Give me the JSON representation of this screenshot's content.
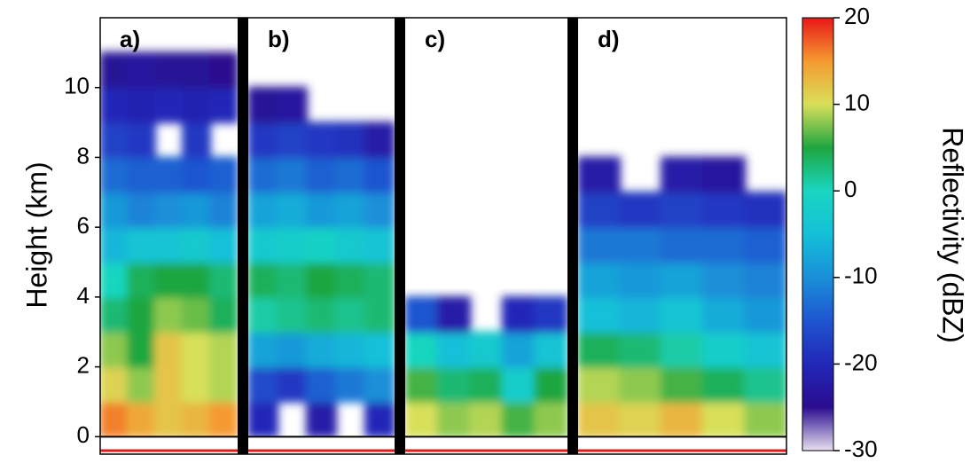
{
  "chart_data": {
    "type": "heatmap",
    "ylabel": "Height (km)",
    "colorbar_label": "Reflectivity (dBZ)",
    "ylim": [
      -0.5,
      12
    ],
    "yticks": [
      0,
      2,
      4,
      6,
      8,
      10
    ],
    "height_bins": [
      0,
      1,
      2,
      3,
      4,
      5,
      6,
      7,
      8,
      9,
      10,
      11,
      12
    ],
    "clim": [
      -30,
      20
    ],
    "cticks": [
      -30,
      -20,
      -10,
      0,
      10,
      20
    ],
    "colormap": [
      "#e8e0f0",
      "#2a0d8e",
      "#2227b8",
      "#1f55d0",
      "#1a8fd8",
      "#14c0d8",
      "#19d6c0",
      "#1fa640",
      "#d8e05a",
      "#f59a30",
      "#e81818"
    ],
    "panels": [
      {
        "label": "a)",
        "z": [
          [
            16,
            14,
            12,
            13,
            15
          ],
          [
            11,
            8,
            12,
            10,
            9
          ],
          [
            8,
            5,
            12,
            10,
            9
          ],
          [
            3,
            5,
            8,
            7,
            4
          ],
          [
            0,
            4,
            5,
            5,
            3
          ],
          [
            -6,
            -4,
            -4,
            -3,
            -5
          ],
          [
            -9,
            -11,
            -10,
            -9,
            -11
          ],
          [
            -13,
            -14,
            -14,
            -15,
            -14
          ],
          [
            -17,
            -18,
            null,
            -18,
            null
          ],
          [
            -20,
            -21,
            -20,
            -21,
            -20
          ],
          [
            -24,
            -23,
            -24,
            -24,
            -25
          ],
          [
            null,
            null,
            null,
            null,
            null
          ]
        ]
      },
      {
        "label": "b)",
        "z": [
          [
            -20,
            null,
            -22,
            null,
            -20
          ],
          [
            -16,
            -18,
            -14,
            -12,
            -10
          ],
          [
            -8,
            -9,
            -7,
            -6,
            -5
          ],
          [
            1,
            2,
            3,
            2,
            3
          ],
          [
            4,
            3,
            5,
            4,
            3
          ],
          [
            -3,
            -2,
            -1,
            -3,
            -4
          ],
          [
            -8,
            -7,
            -9,
            -8,
            -10
          ],
          [
            -13,
            -12,
            -14,
            -13,
            -15
          ],
          [
            -18,
            -17,
            -18,
            -19,
            -22
          ],
          [
            -24,
            -23,
            null,
            null,
            null
          ],
          [
            null,
            null,
            null,
            null,
            null
          ],
          [
            null,
            null,
            null,
            null,
            null
          ]
        ]
      },
      {
        "label": "c)",
        "z": [
          [
            10,
            8,
            9,
            6,
            8
          ],
          [
            6,
            3,
            4,
            -2,
            5
          ],
          [
            0,
            -5,
            -3,
            -8,
            -4
          ],
          [
            -15,
            -22,
            null,
            -20,
            -18
          ],
          [
            null,
            null,
            null,
            null,
            null
          ],
          [
            null,
            null,
            null,
            null,
            null
          ],
          [
            null,
            null,
            null,
            null,
            null
          ],
          [
            null,
            null,
            null,
            null,
            null
          ],
          [
            null,
            null,
            null,
            null,
            null
          ],
          [
            null,
            null,
            null,
            null,
            null
          ],
          [
            null,
            null,
            null,
            null,
            null
          ],
          [
            null,
            null,
            null,
            null,
            null
          ]
        ]
      },
      {
        "label": "d)",
        "z": [
          [
            12,
            11,
            13,
            10,
            8
          ],
          [
            9,
            8,
            6,
            4,
            2
          ],
          [
            4,
            3,
            1,
            -2,
            -4
          ],
          [
            -5,
            -6,
            -4,
            -7,
            -9
          ],
          [
            -8,
            -9,
            -8,
            -10,
            -11
          ],
          [
            -12,
            -12,
            -13,
            -13,
            -14
          ],
          [
            -17,
            -18,
            -17,
            -18,
            -19
          ],
          [
            -22,
            null,
            -22,
            -23,
            null
          ],
          [
            null,
            null,
            null,
            null,
            null
          ],
          [
            null,
            null,
            null,
            null,
            null
          ],
          [
            null,
            null,
            null,
            null,
            null
          ],
          [
            null,
            null,
            null,
            null,
            null
          ]
        ]
      }
    ]
  }
}
